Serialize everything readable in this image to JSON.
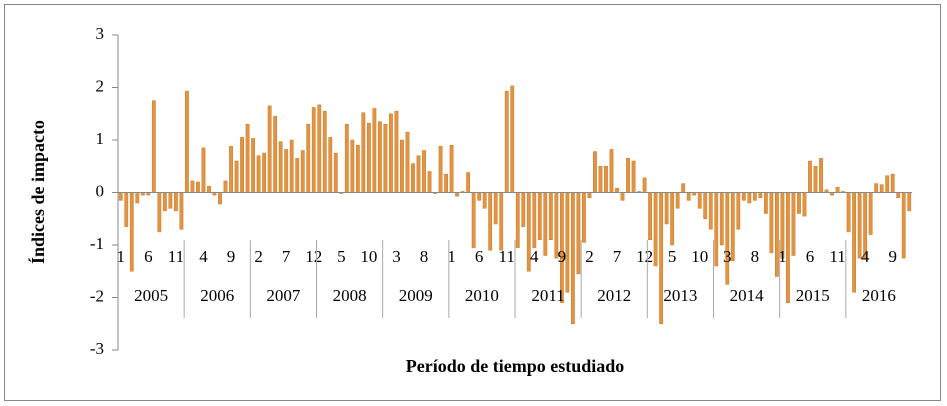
{
  "chart_data": {
    "type": "bar",
    "y_label": "Índices de impacto",
    "x_label": "Período de tiempo estudiado",
    "categories": [
      "1",
      null,
      null,
      null,
      null,
      "6",
      null,
      null,
      null,
      null,
      "11",
      null,
      null,
      null,
      null,
      "4",
      null,
      null,
      null,
      null,
      "9",
      null,
      null,
      null,
      null,
      "2",
      null,
      null,
      null,
      null,
      "7",
      null,
      null,
      null,
      null,
      "12",
      null,
      null,
      null,
      null,
      "5",
      null,
      null,
      null,
      null,
      "10",
      null,
      null,
      null,
      null,
      "3",
      null,
      null,
      null,
      null,
      "8",
      null,
      null,
      null,
      null,
      "1",
      null,
      null,
      null,
      null,
      "6",
      null,
      null,
      null,
      null,
      "11",
      null,
      null,
      null,
      null,
      "4",
      null,
      null,
      null,
      null,
      "9",
      null,
      null,
      null,
      null,
      "2",
      null,
      null,
      null,
      null,
      "7",
      null,
      null,
      null,
      null,
      "12",
      null,
      null,
      null,
      null,
      "5",
      null,
      null,
      null,
      null,
      "10",
      null,
      null,
      null,
      null,
      "3",
      null,
      null,
      null,
      null,
      "8",
      null,
      null,
      null,
      null,
      "1",
      null,
      null,
      null,
      null,
      "6",
      null,
      null,
      null,
      null,
      "11",
      null,
      null,
      null,
      null,
      "4",
      null,
      null,
      null,
      null,
      "9",
      null,
      null,
      null
    ],
    "years": [
      "2005",
      "2006",
      "2007",
      "2008",
      "2009",
      "2010",
      "2011",
      "2012",
      "2013",
      "2014",
      "2015",
      "2016"
    ],
    "values": [
      -0.15,
      -0.65,
      -1.5,
      -0.2,
      -0.05,
      -0.05,
      1.75,
      -0.75,
      -0.35,
      -0.3,
      -0.35,
      -0.7,
      1.93,
      0.22,
      0.2,
      0.85,
      0.12,
      -0.05,
      -0.22,
      0.22,
      0.88,
      0.6,
      1.05,
      1.3,
      1.03,
      0.7,
      0.75,
      1.65,
      1.45,
      0.97,
      0.82,
      1.0,
      0.65,
      0.8,
      1.3,
      1.62,
      1.67,
      1.55,
      1.05,
      0.75,
      -0.02,
      1.3,
      1.0,
      0.9,
      1.52,
      1.32,
      1.6,
      1.35,
      1.3,
      1.5,
      1.55,
      1.0,
      1.15,
      0.55,
      0.7,
      0.8,
      0.4,
      -0.02,
      0.88,
      0.35,
      0.9,
      -0.07,
      0.02,
      0.38,
      -1.05,
      -0.15,
      -0.3,
      -1.1,
      -0.6,
      -1.1,
      1.93,
      2.03,
      -1.05,
      -0.65,
      -1.5,
      -1.05,
      -0.9,
      -1.2,
      -0.9,
      -1.25,
      -2.1,
      -1.9,
      -2.5,
      -1.55,
      -0.95,
      -0.1,
      0.78,
      0.5,
      0.5,
      0.82,
      0.08,
      -0.15,
      0.65,
      0.6,
      0.02,
      0.28,
      -0.9,
      -1.4,
      -2.5,
      -0.6,
      -1.0,
      -0.3,
      0.17,
      -0.15,
      -0.05,
      -0.3,
      -0.5,
      -0.7,
      -1.4,
      -1.0,
      -1.75,
      -1.3,
      -0.7,
      -0.15,
      -0.2,
      -0.15,
      -0.1,
      -0.4,
      -1.15,
      -1.6,
      -1.25,
      -2.1,
      -1.2,
      -0.4,
      -0.45,
      0.6,
      0.5,
      0.65,
      0.05,
      -0.05,
      0.1,
      0.02,
      -0.75,
      -1.9,
      -1.25,
      -1.25,
      -0.8,
      0.17,
      0.15,
      0.32,
      0.35,
      -0.1,
      -1.25,
      -0.35
    ],
    "color": "#e39440",
    "ylim": [
      -3,
      3
    ],
    "yticks": [
      -3,
      -2,
      -1,
      0,
      1,
      2,
      3
    ],
    "grid": false
  }
}
